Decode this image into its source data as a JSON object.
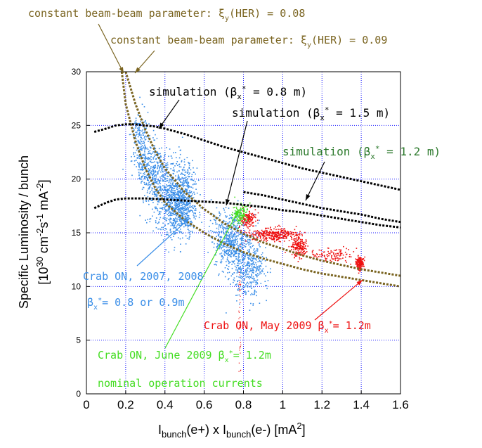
{
  "colors": {
    "brown": "#7a6420",
    "black": "#000000",
    "blue": "#3a8ee8",
    "red": "#ee1111",
    "green": "#44dd22",
    "darkgreen": "#2d7a2d",
    "grid": "#1a1aff"
  },
  "chart_data": {
    "type": "scatter",
    "xlabel": {
      "main1": "I",
      "sub1": "bunch",
      "mid": "(e+) x I",
      "sub2": "bunch",
      "tail": "(e-) [mA",
      "sup": "2",
      "end": "]"
    },
    "ylabel_line1": "Specific Luminosity / bunch",
    "ylabel_line2": {
      "a": "[10",
      "a_sup": "30",
      "b": " cm",
      "b_sup": "-2",
      "c": "s",
      "c_sup": "-1",
      "d": " mA",
      "d_sup": "-2",
      "e": "]"
    },
    "xlim": [
      0,
      1.6
    ],
    "ylim": [
      0,
      30
    ],
    "x_ticks": [
      "0",
      "0.2",
      "0.4",
      "0.6",
      "0.8",
      "1",
      "1.2",
      "1.4",
      "1.6"
    ],
    "y_ticks": [
      "0",
      "5",
      "10",
      "15",
      "20",
      "25",
      "30"
    ],
    "grid": true,
    "series": [
      {
        "name": "constant beam-beam parameter: ξy(HER) = 0.08",
        "kind": "dotted-line",
        "color": "brown",
        "x": [
          0.18,
          0.2,
          0.25,
          0.3,
          0.35,
          0.4,
          0.5,
          0.6,
          0.7,
          0.8,
          0.9,
          1.0,
          1.1,
          1.2,
          1.3,
          1.4,
          1.5,
          1.6
        ],
        "y": [
          30,
          27.0,
          23.5,
          21.0,
          19.2,
          17.8,
          16.2,
          15.0,
          14.0,
          13.2,
          12.6,
          12.1,
          11.6,
          11.2,
          10.9,
          10.6,
          10.3,
          10.0
        ]
      },
      {
        "name": "constant beam-beam parameter: ξy(HER) = 0.09",
        "kind": "dotted-line",
        "color": "brown",
        "x": [
          0.2,
          0.25,
          0.3,
          0.35,
          0.4,
          0.5,
          0.6,
          0.7,
          0.8,
          0.9,
          1.0,
          1.1,
          1.2,
          1.3,
          1.4,
          1.5,
          1.6
        ],
        "y": [
          30,
          27.0,
          24.6,
          22.6,
          21.0,
          18.8,
          17.2,
          15.9,
          14.9,
          14.1,
          13.5,
          12.9,
          12.4,
          12.0,
          11.6,
          11.3,
          11.0
        ]
      },
      {
        "name": "simulation (βx* = 0.8 m)",
        "kind": "dotted-line",
        "color": "black",
        "x": [
          0.04,
          0.1,
          0.15,
          0.2,
          0.25,
          0.3,
          0.35,
          0.4,
          0.5,
          0.6,
          0.7,
          0.8,
          0.9,
          1.0,
          1.1,
          1.2,
          1.3,
          1.4,
          1.5,
          1.6
        ],
        "y": [
          24.4,
          24.7,
          25.0,
          25.1,
          25.1,
          25.0,
          24.9,
          24.7,
          24.2,
          23.6,
          23.0,
          22.5,
          22.0,
          21.5,
          21.0,
          20.6,
          20.2,
          19.8,
          19.4,
          19.0
        ]
      },
      {
        "name": "simulation (βx* = 1.5 m)",
        "kind": "dotted-line",
        "color": "black",
        "x": [
          0.04,
          0.1,
          0.15,
          0.2,
          0.25,
          0.3,
          0.4,
          0.5,
          0.6,
          0.7,
          0.8,
          0.9,
          1.0,
          1.1,
          1.2,
          1.3,
          1.4,
          1.5,
          1.6
        ],
        "y": [
          17.3,
          17.8,
          18.1,
          18.2,
          18.2,
          18.2,
          18.1,
          18.0,
          17.9,
          17.8,
          17.6,
          17.4,
          17.1,
          16.9,
          16.6,
          16.3,
          16.0,
          15.7,
          15.5
        ]
      },
      {
        "name": "simulation (βx* = 1.2 m)",
        "kind": "dotted-line",
        "color": "black",
        "x": [
          0.8,
          0.9,
          1.0,
          1.1,
          1.2,
          1.3,
          1.4,
          1.5,
          1.6
        ],
        "y": [
          18.8,
          18.5,
          18.1,
          17.7,
          17.3,
          17.0,
          16.7,
          16.3,
          16.0
        ]
      }
    ],
    "clusters": [
      {
        "name": "Crab ON, 2007, 2008",
        "color": "blue",
        "count": 2600,
        "blobs": [
          [
            0.27,
            23.5,
            0.02,
            1.4,
            0.07
          ],
          [
            0.33,
            21.0,
            0.04,
            1.2,
            0.12
          ],
          [
            0.42,
            18.5,
            0.05,
            1.6,
            0.22
          ],
          [
            0.48,
            17.0,
            0.04,
            1.4,
            0.14
          ],
          [
            0.5,
            19.0,
            0.03,
            1.5,
            0.08
          ],
          [
            0.72,
            14.3,
            0.04,
            1.3,
            0.16
          ],
          [
            0.8,
            12.6,
            0.04,
            1.8,
            0.16
          ],
          [
            0.85,
            11.8,
            0.03,
            1.2,
            0.05
          ]
        ]
      },
      {
        "name": "Crab ON, May 2009 βx* = 1.2m",
        "color": "red",
        "count": 900,
        "blobs": [
          [
            0.82,
            16.3,
            0.02,
            0.4,
            0.15
          ],
          [
            0.95,
            14.9,
            0.06,
            0.3,
            0.35
          ],
          [
            1.08,
            13.7,
            0.02,
            0.5,
            0.2
          ],
          [
            1.25,
            13.0,
            0.05,
            0.3,
            0.12
          ],
          [
            1.39,
            12.2,
            0.01,
            0.3,
            0.18
          ]
        ]
      },
      {
        "name": "Crab ON, June 2009 βx* = 1.2m",
        "color": "green",
        "count": 120,
        "blobs": [
          [
            0.78,
            16.8,
            0.02,
            0.5,
            1.0
          ]
        ]
      }
    ],
    "annotations": {
      "bb008": {
        "pre": "constant beam-beam parameter: ξ",
        "sub": "y",
        "post": "(HER) = 0.08"
      },
      "bb009": {
        "pre": "constant beam-beam parameter: ξ",
        "sub": "y",
        "post": "(HER) = 0.09"
      },
      "sim08": {
        "pre": "simulation (β",
        "sub": "x",
        "sup": "*",
        "post": " = 0.8 m)"
      },
      "sim15": {
        "pre": "simulation (β",
        "sub": "x",
        "sup": "*",
        "post": " = 1.5 m)"
      },
      "sim12": {
        "pre": "simulation (β",
        "sub": "x",
        "sup": "*",
        "post": " = 1.2 m)"
      },
      "crab0708_l1": "Crab ON, 2007, 2008",
      "crab0708_l2": {
        "pre": "β",
        "sub": "x",
        "sup": "*",
        "post": "= 0.8 or 0.9m"
      },
      "crab_may": {
        "pre": "Crab ON, May 2009 β",
        "sub": "x",
        "sup": "*",
        "post": "= 1.2m"
      },
      "crab_june": {
        "pre": "Crab ON, June 2009 β",
        "sub": "x",
        "sup": "*",
        "post": "= 1.2m"
      },
      "nominal": "nominal operation currents"
    }
  }
}
